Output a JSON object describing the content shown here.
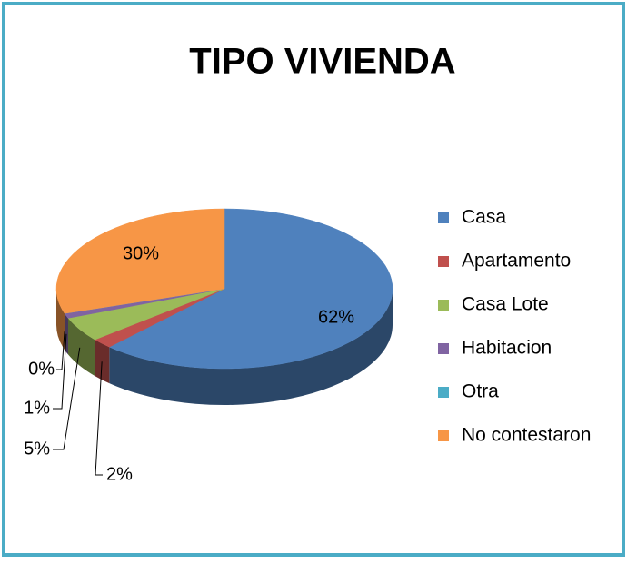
{
  "chart_data": {
    "type": "pie",
    "title": "TIPO VIVIENDA",
    "categories": [
      "Casa",
      "Apartamento",
      "Casa Lote",
      "Habitacion",
      "Otra",
      "No contestaron"
    ],
    "values": [
      62,
      2,
      5,
      1,
      0,
      30
    ],
    "value_labels": [
      "62%",
      "2%",
      "5%",
      "1%",
      "0%",
      "30%"
    ],
    "colors": [
      "#4f81bd",
      "#c0504d",
      "#9bbb59",
      "#8064a2",
      "#4bacc6",
      "#f79646"
    ],
    "legend": "right"
  }
}
